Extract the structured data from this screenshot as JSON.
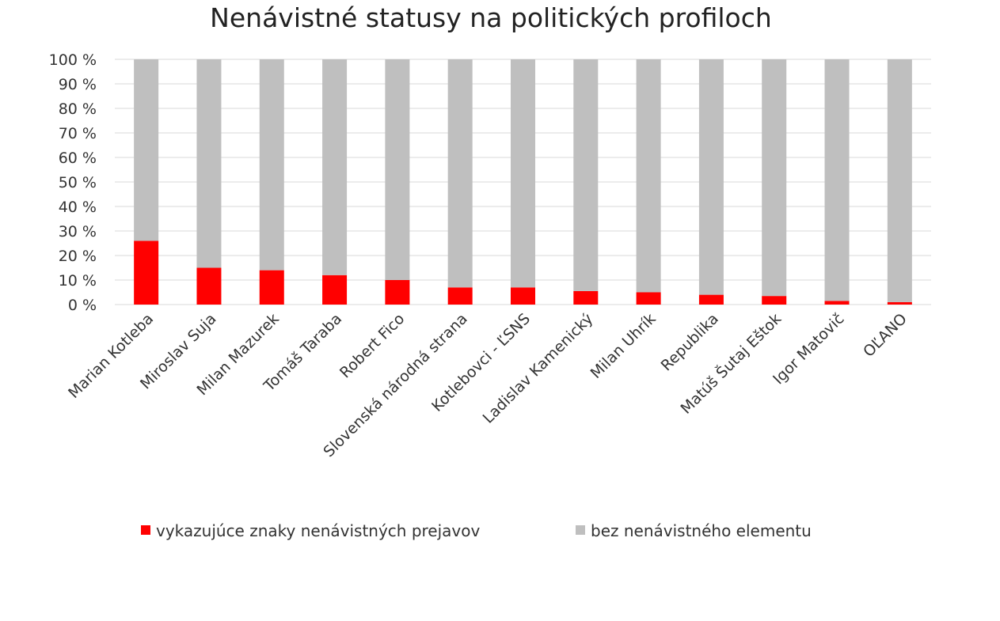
{
  "chart_data": {
    "type": "bar",
    "stacked": true,
    "normalized": true,
    "title": "Nenávistné statusy na politických profiloch",
    "categories": [
      "Marian Kotleba",
      "Miroslav Suja",
      "Milan Mazurek",
      "Tomáš Taraba",
      "Robert Fico",
      "Slovenská národná strana",
      "Kotlebovci - ĽSNS",
      "Ladislav Kamenický",
      "Milan Uhrík",
      "Republika",
      "Matúš Šutaj Eštok",
      "Igor Matovič",
      "OĽANO"
    ],
    "series": [
      {
        "name": "vykazujúce znaky nenávistných prejavov",
        "color": "#ff0000",
        "values": [
          26,
          15,
          14,
          12,
          10,
          7,
          7,
          5.5,
          5,
          4,
          3.5,
          1.5,
          1
        ]
      },
      {
        "name": "bez nenávistného elementu",
        "color": "#bfbfbf",
        "values": [
          74,
          85,
          86,
          88,
          90,
          93,
          93,
          94.5,
          95,
          96,
          96.5,
          98.5,
          99
        ]
      }
    ],
    "yticks": [
      "0 %",
      "10 %",
      "20 %",
      "30 %",
      "40 %",
      "50 %",
      "60 %",
      "70 %",
      "80 %",
      "90 %",
      "100 %"
    ],
    "ylim": [
      0,
      100
    ],
    "grid": true,
    "legend": "bottom"
  }
}
